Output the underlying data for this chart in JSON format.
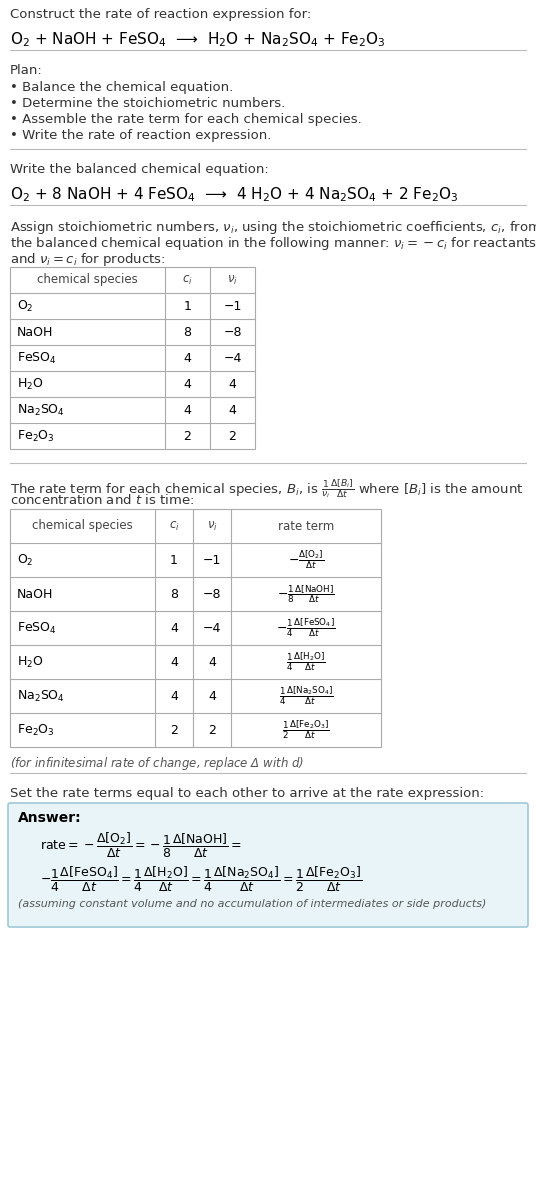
{
  "bg_color": "#ffffff",
  "title_line1": "Construct the rate of reaction expression for:",
  "reaction_unbalanced": "O$_2$ + NaOH + FeSO$_4$  ⟶  H$_2$O + Na$_2$SO$_4$ + Fe$_2$O$_3$",
  "plan_header": "Plan:",
  "plan_items": [
    "• Balance the chemical equation.",
    "• Determine the stoichiometric numbers.",
    "• Assemble the rate term for each chemical species.",
    "• Write the rate of reaction expression."
  ],
  "balanced_header": "Write the balanced chemical equation:",
  "reaction_balanced": "O$_2$ + 8 NaOH + 4 FeSO$_4$  ⟶  4 H$_2$O + 4 Na$_2$SO$_4$ + 2 Fe$_2$O$_3$",
  "stoich_intro1": "Assign stoichiometric numbers, $\\nu_i$, using the stoichiometric coefficients, $c_i$, from",
  "stoich_intro2": "the balanced chemical equation in the following manner: $\\nu_i = -c_i$ for reactants",
  "stoich_intro3": "and $\\nu_i = c_i$ for products:",
  "table1_headers": [
    "chemical species",
    "$c_i$",
    "$\\nu_i$"
  ],
  "table1_data": [
    [
      "O$_2$",
      "1",
      "−1"
    ],
    [
      "NaOH",
      "8",
      "−8"
    ],
    [
      "FeSO$_4$",
      "4",
      "−4"
    ],
    [
      "H$_2$O",
      "4",
      "4"
    ],
    [
      "Na$_2$SO$_4$",
      "4",
      "4"
    ],
    [
      "Fe$_2$O$_3$",
      "2",
      "2"
    ]
  ],
  "rate_intro1": "The rate term for each chemical species, $B_i$, is $\\frac{1}{\\nu_i}\\frac{\\Delta[B_i]}{\\Delta t}$ where $[B_i]$ is the amount",
  "rate_intro2": "concentration and $t$ is time:",
  "table2_headers": [
    "chemical species",
    "$c_i$",
    "$\\nu_i$",
    "rate term"
  ],
  "table2_data": [
    [
      "O$_2$",
      "1",
      "−1",
      "$-\\frac{\\Delta[\\mathrm{O_2}]}{\\Delta t}$"
    ],
    [
      "NaOH",
      "8",
      "−8",
      "$-\\frac{1}{8}\\frac{\\Delta[\\mathrm{NaOH}]}{\\Delta t}$"
    ],
    [
      "FeSO$_4$",
      "4",
      "−4",
      "$-\\frac{1}{4}\\frac{\\Delta[\\mathrm{FeSO_4}]}{\\Delta t}$"
    ],
    [
      "H$_2$O",
      "4",
      "4",
      "$\\frac{1}{4}\\frac{\\Delta[\\mathrm{H_2O}]}{\\Delta t}$"
    ],
    [
      "Na$_2$SO$_4$",
      "4",
      "4",
      "$\\frac{1}{4}\\frac{\\Delta[\\mathrm{Na_2SO_4}]}{\\Delta t}$"
    ],
    [
      "Fe$_2$O$_3$",
      "2",
      "2",
      "$\\frac{1}{2}\\frac{\\Delta[\\mathrm{Fe_2O_3}]}{\\Delta t}$"
    ]
  ],
  "infinitesimal_note": "(for infinitesimal rate of change, replace Δ with $d$)",
  "rate_expr_intro": "Set the rate terms equal to each other to arrive at the rate expression:",
  "answer_bg": "#e8f4f8",
  "answer_border": "#a0c8d8",
  "answer_label": "Answer:",
  "answer_note": "(assuming constant volume and no accumulation of intermediates or side products)"
}
